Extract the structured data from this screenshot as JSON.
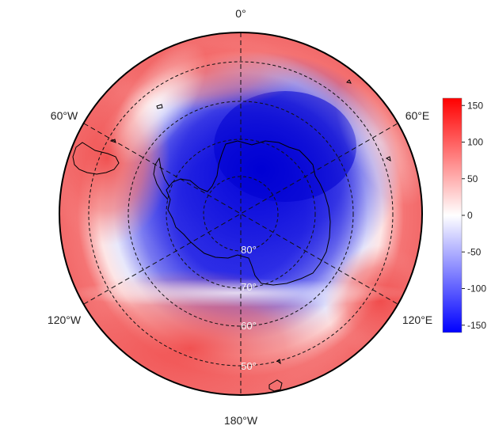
{
  "map": {
    "projection": "south-polar stereographic",
    "longitude_labels": [
      {
        "id": "0",
        "text": "0°"
      },
      {
        "id": "60e",
        "text": "60°E"
      },
      {
        "id": "120e",
        "text": "120°E"
      },
      {
        "id": "180w",
        "text": "180°W"
      },
      {
        "id": "120w",
        "text": "120°W"
      },
      {
        "id": "60w",
        "text": "60°W"
      }
    ],
    "latitude_labels": [
      {
        "id": "80",
        "text": "80°"
      },
      {
        "id": "70",
        "text": "70°"
      },
      {
        "id": "60",
        "text": "60°"
      },
      {
        "id": "50",
        "text": "50°"
      }
    ],
    "field_description": "strong negative anomaly centered over Antarctica / Amundsen sector, positive ring toward mid-latitudes",
    "colors": {
      "negative": "#0000ff",
      "zero": "#ffffff",
      "positive": "#ff0000"
    }
  },
  "colorbar": {
    "min": -160,
    "max": 160,
    "ticks": [
      "150",
      "100",
      "50",
      "0",
      "-50",
      "-100",
      "-150"
    ],
    "tick_values": [
      150,
      100,
      50,
      0,
      -50,
      -100,
      -150
    ]
  }
}
